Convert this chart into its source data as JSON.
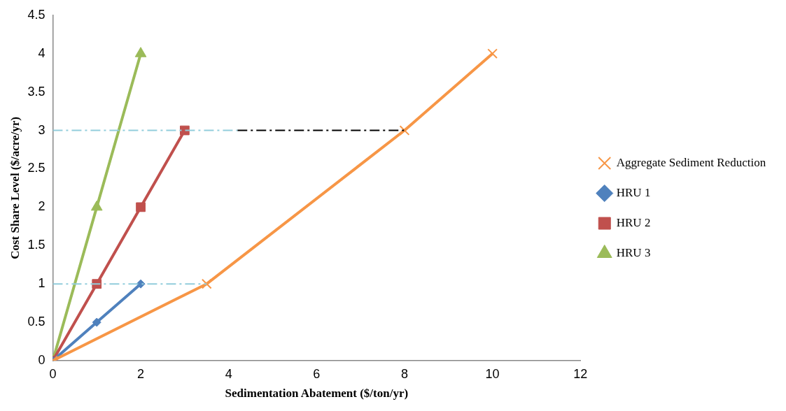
{
  "chart_data": {
    "type": "line",
    "xlabel": "Sedimentation Abatement ($/ton/yr)",
    "ylabel": "Cost Share Level ($/acre/yr)",
    "xlim": [
      0,
      12
    ],
    "xticks": [
      0,
      2,
      4,
      6,
      8,
      10,
      12
    ],
    "ylim": [
      0,
      4.5
    ],
    "yticks": [
      0,
      0.5,
      1,
      1.5,
      2,
      2.5,
      3,
      3.5,
      4,
      4.5
    ],
    "grid": false,
    "legend": "right",
    "series": [
      {
        "type": "line",
        "color": "#92cddc",
        "x": [
          0,
          3.5
        ],
        "values": [
          1,
          1
        ],
        "marker": "none",
        "line_style": "dashed"
      },
      {
        "type": "line",
        "color": "#92cddc",
        "x": [
          0,
          4.2
        ],
        "values": [
          3,
          3
        ],
        "marker": "none",
        "line_style": "dashed"
      },
      {
        "type": "line",
        "color": "#000000",
        "x": [
          4.2,
          8
        ],
        "values": [
          3,
          3
        ],
        "marker": "none",
        "line_style": "dashed"
      },
      {
        "name": "Aggregate Sediment Reduction",
        "type": "line",
        "color": "#f79646",
        "x": [
          0,
          3.5,
          8,
          10
        ],
        "values": [
          0,
          1,
          3,
          4
        ],
        "marker": "cross"
      },
      {
        "name": "HRU 1",
        "type": "line",
        "color": "#4f81bd",
        "x": [
          0,
          1,
          2
        ],
        "values": [
          0,
          0.5,
          1
        ],
        "marker": "diamond"
      },
      {
        "name": "HRU 2",
        "type": "line",
        "color": "#c0504d",
        "x": [
          0,
          1,
          2,
          3
        ],
        "values": [
          0,
          1,
          2,
          3
        ],
        "marker": "square"
      },
      {
        "name": "HRU 3",
        "type": "line",
        "color": "#9bbb59",
        "x": [
          0,
          1,
          2
        ],
        "values": [
          0,
          2,
          4
        ],
        "marker": "triangle"
      }
    ]
  }
}
